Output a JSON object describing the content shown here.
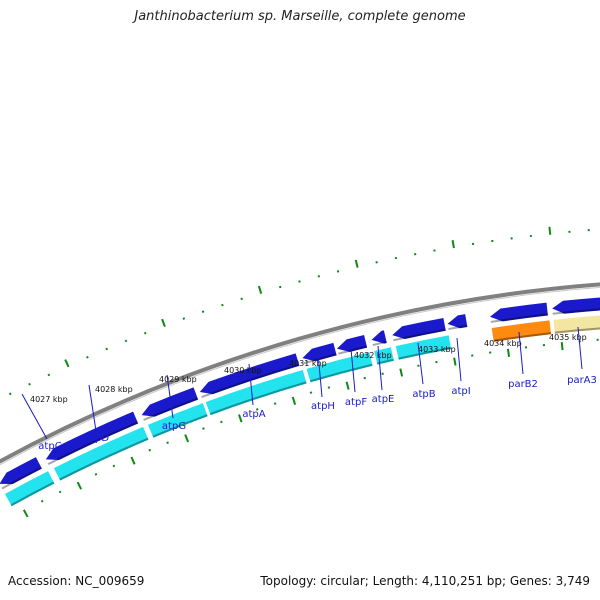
{
  "title": "Janthinobacterium sp. Marseille, complete genome",
  "footer": {
    "accession": "Accession: NC_009659",
    "stats": "Topology: circular; Length: 4,110,251 bp; Genes: 3,749"
  },
  "colors": {
    "backbone": "#808080",
    "forward_gene": "#1a1acc",
    "reverse_cds": "#22e3ee",
    "orange_gene": "#ff8a10",
    "pale_gene": "#f3e6a0",
    "tick": "#118811",
    "gene_label": "#1a1acc"
  },
  "scale": {
    "unit": "kbp",
    "labels": [
      "4027 kbp",
      "4028 kbp",
      "4029 kbp",
      "4030 kbp",
      "4031 kbp",
      "4032 kbp",
      "4033 kbp",
      "4034 kbp",
      "4035 kbp"
    ]
  },
  "genes": [
    {
      "name": "atpC"
    },
    {
      "name": "atpD"
    },
    {
      "name": "atpG"
    },
    {
      "name": "atpA"
    },
    {
      "name": "atpH"
    },
    {
      "name": "atpF"
    },
    {
      "name": "atpE"
    },
    {
      "name": "atpB"
    },
    {
      "name": "atpI"
    },
    {
      "name": "parB2"
    },
    {
      "name": "parA3"
    }
  ]
}
